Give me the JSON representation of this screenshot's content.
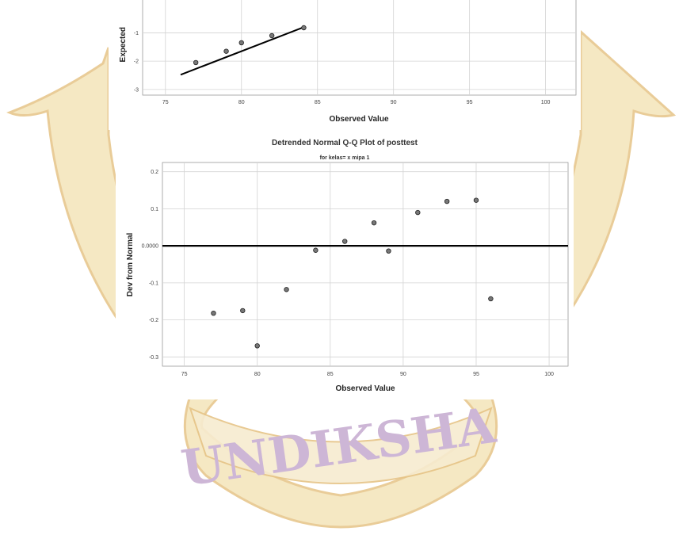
{
  "watermark": {
    "text": "UNDIKSHA",
    "shield_color": "#f2dfae",
    "shield_outline": "#e9c98c",
    "text_color": "#cdb6d6"
  },
  "chart_data": [
    {
      "type": "scatter",
      "title": "",
      "xlabel": "Observed Value",
      "ylabel": "Expected",
      "xlim": [
        73.5,
        102
      ],
      "ylim": [
        -3.2,
        0.3
      ],
      "x_ticks": [
        75,
        80,
        85,
        90,
        95,
        100
      ],
      "y_ticks": [
        -3,
        -2,
        -1
      ],
      "points": [
        {
          "x": 77,
          "y": -2.05
        },
        {
          "x": 79,
          "y": -1.65
        },
        {
          "x": 80,
          "y": -1.35
        },
        {
          "x": 82,
          "y": -1.1
        },
        {
          "x": 84.1,
          "y": -0.82
        }
      ],
      "reference_line": {
        "from": [
          76,
          -2.48
        ],
        "to": [
          84.1,
          -0.8
        ]
      }
    },
    {
      "type": "scatter",
      "title": "Detrended Normal Q-Q Plot of posttest",
      "subtitle": "for kelas= x mipa 1",
      "xlabel": "Observed Value",
      "ylabel": "Dev from Normal",
      "xlim": [
        73.5,
        101.3
      ],
      "ylim": [
        -0.325,
        0.225
      ],
      "x_ticks": [
        75,
        80,
        85,
        90,
        95,
        100
      ],
      "y_ticks": [
        {
          "value": 0.2,
          "label": "0.2"
        },
        {
          "value": 0.1,
          "label": "0.1"
        },
        {
          "value": 0.0,
          "label": "0.0000"
        },
        {
          "value": -0.1,
          "label": "-0.1"
        },
        {
          "value": -0.2,
          "label": "-0.2"
        },
        {
          "value": -0.3,
          "label": "-0.3"
        }
      ],
      "points": [
        {
          "x": 77,
          "y": -0.182
        },
        {
          "x": 79,
          "y": -0.175
        },
        {
          "x": 80,
          "y": -0.27
        },
        {
          "x": 82,
          "y": -0.118
        },
        {
          "x": 84,
          "y": -0.012
        },
        {
          "x": 86,
          "y": 0.012
        },
        {
          "x": 88,
          "y": 0.062
        },
        {
          "x": 89,
          "y": -0.014
        },
        {
          "x": 91,
          "y": 0.09
        },
        {
          "x": 93,
          "y": 0.12
        },
        {
          "x": 95,
          "y": 0.123
        },
        {
          "x": 96,
          "y": -0.143
        }
      ],
      "reference_line_y": 0
    }
  ]
}
